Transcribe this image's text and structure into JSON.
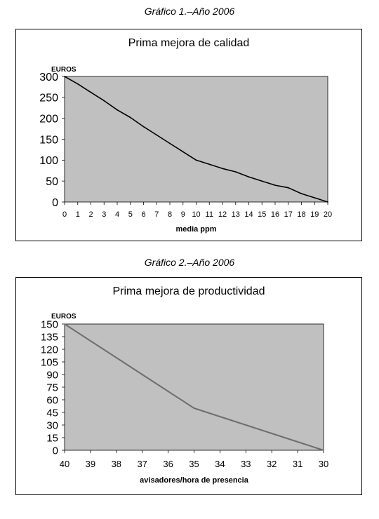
{
  "captions": [
    "Gráfico 1.–Año 2006",
    "Gráfico 2.–Año 2006"
  ],
  "chart_data": [
    {
      "type": "line",
      "title": "Prima mejora de calidad",
      "ylabel": "EUROS",
      "xlabel": "media ppm",
      "xlim": [
        0,
        20
      ],
      "ylim": [
        0,
        300
      ],
      "xticks": [
        0,
        1,
        2,
        3,
        4,
        5,
        6,
        7,
        8,
        9,
        10,
        11,
        12,
        13,
        14,
        15,
        16,
        17,
        18,
        19,
        20
      ],
      "yticks": [
        0,
        50,
        100,
        150,
        200,
        250,
        300
      ],
      "x_reversed": false,
      "grid": false,
      "series": [
        {
          "x": [
            0,
            1,
            2,
            3,
            4,
            5,
            6,
            7,
            8,
            9,
            10,
            11,
            12,
            13,
            14,
            15,
            16,
            17,
            18,
            19,
            20
          ],
          "values": [
            300,
            282,
            262,
            242,
            220,
            202,
            180,
            160,
            140,
            120,
            100,
            90,
            80,
            72,
            60,
            50,
            40,
            34,
            20,
            10,
            0
          ]
        }
      ],
      "colors": {
        "plot_bg": "#c0c0c0",
        "line": "#000000"
      }
    },
    {
      "type": "line",
      "title": "Prima mejora de productividad",
      "ylabel": "EUROS",
      "xlabel": "avisadores/hora de presencia",
      "xlim": [
        40,
        30
      ],
      "ylim": [
        0,
        150
      ],
      "xticks": [
        40,
        39,
        38,
        37,
        36,
        35,
        34,
        33,
        32,
        31,
        30
      ],
      "yticks": [
        0,
        15,
        30,
        45,
        60,
        75,
        90,
        105,
        120,
        135,
        150
      ],
      "x_reversed": true,
      "grid": false,
      "series": [
        {
          "x": [
            40,
            39,
            38,
            37,
            36,
            35,
            34,
            33,
            32,
            31,
            30
          ],
          "values": [
            150,
            130,
            110,
            90,
            70,
            50,
            40,
            30,
            20,
            10,
            0
          ]
        }
      ],
      "colors": {
        "plot_bg": "#c0c0c0",
        "line": "#6e6e6e"
      }
    }
  ]
}
